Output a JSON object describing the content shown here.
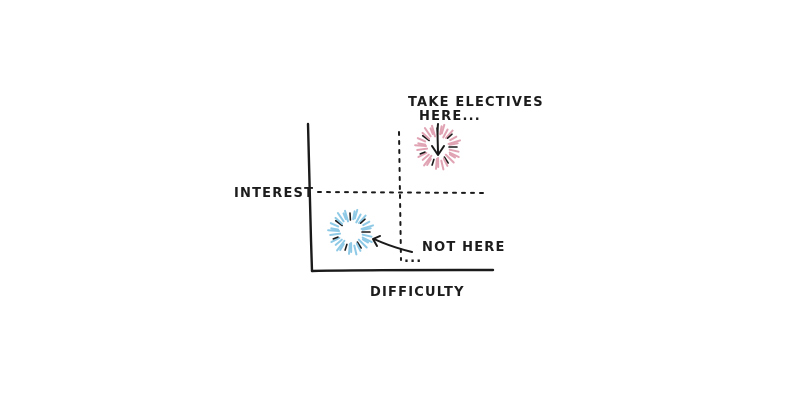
{
  "axes": {
    "y_label": "INTEREST",
    "x_label": "DIFFICULTY"
  },
  "annotations": {
    "good_quadrant": {
      "line1": "TAKE ELECTIVES",
      "line2": "HERE...",
      "color": "#e0a3b4",
      "icon": "sparkle-circle-icon"
    },
    "bad_quadrant": {
      "label": "NOT HERE",
      "color": "#8ec9e6",
      "icon": "sparkle-circle-icon"
    }
  },
  "colors": {
    "ink": "#1a1a1a",
    "background": "#ffffff"
  }
}
